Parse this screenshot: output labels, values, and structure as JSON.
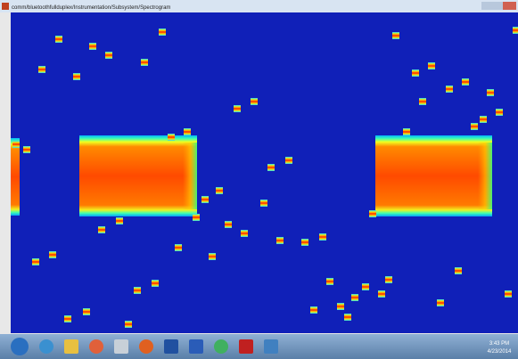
{
  "window": {
    "title": "comm/bluetoothfullduplex/Instrumentation/Subsystem/Spectrogram"
  },
  "taskbar": {
    "time": "3:43 PM",
    "date": "4/23/2014"
  }
}
